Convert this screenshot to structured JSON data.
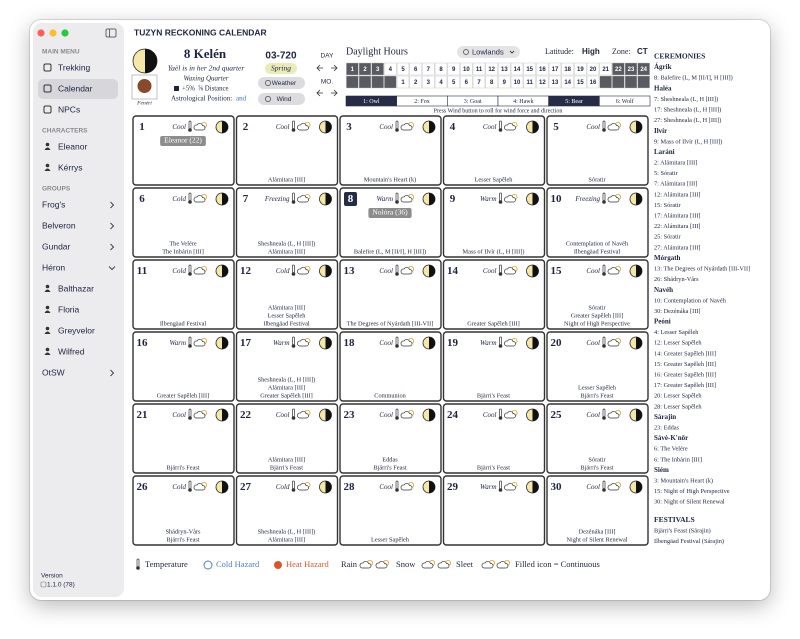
{
  "window": {
    "title": "TUZYN RECKONING CALENDAR"
  },
  "sidebar": {
    "sections": [
      {
        "heading": "MAIN MENU",
        "items": [
          {
            "label": "Trekking"
          },
          {
            "label": "Calendar",
            "selected": true
          },
          {
            "label": "NPCs"
          }
        ]
      },
      {
        "heading": "CHARACTERS",
        "items": [
          {
            "label": "Eleanor"
          },
          {
            "label": "Kérrys"
          }
        ]
      },
      {
        "heading": "GROUPS",
        "items": [
          {
            "label": "Frog's",
            "expanded": false
          },
          {
            "label": "Belveron",
            "expanded": false
          },
          {
            "label": "Gundar",
            "expanded": false
          },
          {
            "label": "Héron",
            "expanded": true,
            "members": [
              "Balthazar",
              "Floria",
              "Greyvelor",
              "Wilfred"
            ]
          },
          {
            "label": "OtSW",
            "expanded": false
          }
        ]
      }
    ],
    "version_label": "Version",
    "version": "1.1.0 (78)"
  },
  "header": {
    "date": "8 Kelén",
    "moon_status": "Yaël is in her 2nd quarter",
    "phase": "Waxing Quarter",
    "modifier": "+5%",
    "distance": "⅝ Distance",
    "astro_label": "Astrological Position:",
    "astro_value": "and",
    "portrait_label": "Fenéri",
    "year": "03-720",
    "season": "Spring",
    "weather_button": "Weather",
    "wind_button": "Wind",
    "day_label": "DAY",
    "month_label": "MO."
  },
  "daylight": {
    "title": "Daylight Hours",
    "region": "Lowlands",
    "latitude_label": "Latitude:",
    "latitude": "High",
    "zone_label": "Zone:",
    "zone": "CT",
    "hours": [
      1,
      2,
      3,
      4,
      5,
      6,
      7,
      8,
      9,
      10,
      11,
      12,
      13,
      14,
      15,
      16,
      17,
      18,
      19,
      20,
      21,
      22,
      23,
      24
    ],
    "dark": [
      true,
      true,
      true,
      false,
      false,
      false,
      false,
      false,
      false,
      false,
      false,
      false,
      false,
      false,
      false,
      false,
      false,
      false,
      false,
      false,
      false,
      true,
      true,
      true
    ],
    "counts": [
      null,
      null,
      null,
      null,
      1,
      2,
      3,
      4,
      5,
      6,
      7,
      8,
      9,
      10,
      11,
      12,
      13,
      14,
      15,
      16,
      null,
      null,
      null,
      null
    ],
    "wind": [
      {
        "label": "1: Owl",
        "active": true
      },
      {
        "label": "2: Fox",
        "active": false
      },
      {
        "label": "3: Goat",
        "active": false
      },
      {
        "label": "4: Hawk",
        "active": false
      },
      {
        "label": "5: Bear",
        "active": true
      },
      {
        "label": "6: Wolf",
        "active": false
      }
    ],
    "note": "Press Wind button to roll for wind force and direction"
  },
  "calendar": {
    "days": [
      {
        "day": 1,
        "temp": "Cool",
        "npc": "Eleanor (22)",
        "events": []
      },
      {
        "day": 2,
        "temp": "Cool",
        "events": [
          "Alámitara [III]"
        ]
      },
      {
        "day": 3,
        "temp": "Cool",
        "events": [
          "Mountain's Heart (k)"
        ]
      },
      {
        "day": 4,
        "temp": "Cool",
        "events": [
          "Lesser Sapěleh"
        ]
      },
      {
        "day": 5,
        "temp": "Cool",
        "events": [
          "Sóratir"
        ]
      },
      {
        "day": 6,
        "temp": "Cold",
        "events": [
          "The Velére",
          "The Inbárin [III]"
        ]
      },
      {
        "day": 7,
        "temp": "Freezing",
        "events": [
          "Sheshneala (L, H [III])",
          "Alámitara [III]"
        ]
      },
      {
        "day": 8,
        "temp": "Warm",
        "selected": true,
        "npc": "Nolóra (36)",
        "events": [
          "Balefire (L, M [II/I], H [III])"
        ]
      },
      {
        "day": 9,
        "temp": "Warm",
        "events": [
          "Mass of Ilvír (L, H [III])"
        ]
      },
      {
        "day": 10,
        "temp": "Freezing",
        "events": [
          "Contemplation of Navéh",
          "Ilbengäad Festival"
        ]
      },
      {
        "day": 11,
        "temp": "Cold",
        "events": [
          "Ilbengäad Festival"
        ]
      },
      {
        "day": 12,
        "temp": "Cold",
        "events": [
          "Alámitara [III]",
          "Lesser Sapěleh",
          "Ilbengäad Festival"
        ]
      },
      {
        "day": 13,
        "temp": "Cool",
        "events": [
          "The Degrees of Nyárdath [III-VII]"
        ]
      },
      {
        "day": 14,
        "temp": "Cool",
        "events": [
          "Greater Sapěleh [III]"
        ]
      },
      {
        "day": 15,
        "temp": "Cool",
        "events": [
          "Sóratir",
          "Greater Sapěleh [III]",
          "Night of High Perspective"
        ]
      },
      {
        "day": 16,
        "temp": "Warm",
        "events": [
          "Greater Sapěleh [III]"
        ]
      },
      {
        "day": 17,
        "temp": "Warm",
        "events": [
          "Sheshneala (L, H [III])",
          "Alámitara [III]",
          "Greater Sapěleh [III]"
        ]
      },
      {
        "day": 18,
        "temp": "Cool",
        "events": [
          "Communion"
        ]
      },
      {
        "day": 19,
        "temp": "Warm",
        "events": [
          "Bjärri's Feast"
        ]
      },
      {
        "day": 20,
        "temp": "Cool",
        "events": [
          "Lesser Sapěleh",
          "Bjärri's Feast"
        ]
      },
      {
        "day": 21,
        "temp": "Cool",
        "events": [
          "Bjärri's Feast"
        ]
      },
      {
        "day": 22,
        "temp": "Cool",
        "events": [
          "Alámitara [III]",
          "Bjärri's Feast"
        ]
      },
      {
        "day": 23,
        "temp": "Cool",
        "events": [
          "Eddas",
          "Bjärri's Feast"
        ]
      },
      {
        "day": 24,
        "temp": "Cool",
        "events": [
          "Bjärri's Feast"
        ]
      },
      {
        "day": 25,
        "temp": "Cool",
        "events": [
          "Sóratir",
          "Bjärri's Feast"
        ]
      },
      {
        "day": 26,
        "temp": "Cold",
        "events": [
          "Shádryn-Vårs",
          "Bjärri's Feast"
        ]
      },
      {
        "day": 27,
        "temp": "Cold",
        "events": [
          "Sheshneala (L, H [III])",
          "Alámitara [III]"
        ]
      },
      {
        "day": 28,
        "temp": "Cool",
        "events": [
          "Lesser Sapěleh"
        ]
      },
      {
        "day": 29,
        "temp": "Warm",
        "events": []
      },
      {
        "day": 30,
        "temp": "Cool",
        "events": [
          "Dezénáka [III]",
          "Night of Silent Renewal"
        ]
      }
    ]
  },
  "ceremonies": {
    "title": "CEREMONIES",
    "groups": [
      {
        "name": "Ágrik",
        "items": [
          "8: Balefire (L, M [II/I], H [III])"
        ]
      },
      {
        "name": "Haléa",
        "items": [
          "7: Sheshneala (L, H [III])",
          "17: Sheshneala (L, H [III])",
          "27: Sheshneala (L, H [III])"
        ]
      },
      {
        "name": "Ilvír",
        "items": [
          "9: Mass of Ilvír (L, H [III])"
        ]
      },
      {
        "name": "Laráni",
        "items": [
          "2: Alámitara [III]",
          "5: Sóratir",
          "7: Alámitara [III]",
          "12: Alámitara [III]",
          "15: Sóratir",
          "17: Alámitara [III]",
          "22: Alámitara [III]",
          "25: Sóratir",
          "27: Alámitara [III]"
        ]
      },
      {
        "name": "Mórgath",
        "items": [
          "13: The Degrees of Nyárdath [III-VII]",
          "26: Shádryn-Vårs"
        ]
      },
      {
        "name": "Navéh",
        "items": [
          "10: Contemplation of Navéh",
          "30: Dezénáka [III]"
        ]
      },
      {
        "name": "Peóni",
        "items": [
          "4: Lesser Sapěleh",
          "12: Lesser Sapěleh",
          "14: Greater Sapěleh [III]",
          "15: Greater Sapěleh [III]",
          "16: Greater Sapěleh [III]",
          "17: Greater Sapěleh [III]",
          "20: Lesser Sapěleh",
          "28: Lesser Sapěleh"
        ]
      },
      {
        "name": "Sárajin",
        "items": [
          "23: Eddas"
        ]
      },
      {
        "name": "Sávè-K'nōr",
        "items": [
          "6: The Velére",
          "6: The Inbárin [III]"
        ]
      },
      {
        "name": "Siém",
        "items": [
          "3: Mountain's Heart (k)",
          "15: Night of High Perspective",
          "30: Night of Silent Renewal"
        ]
      }
    ]
  },
  "festivals": {
    "title": "FESTIVALS",
    "items": [
      "Bjärri's Feast (Sárajin)",
      "Ilbengäad Festival (Sárajin)"
    ]
  },
  "legend": {
    "temperature": "Temperature",
    "cold": "Cold Hazard",
    "heat": "Heat Hazard",
    "rain": "Rain",
    "snow": "Snow",
    "sleet": "Sleet",
    "note": "Filled icon = Continuous"
  }
}
